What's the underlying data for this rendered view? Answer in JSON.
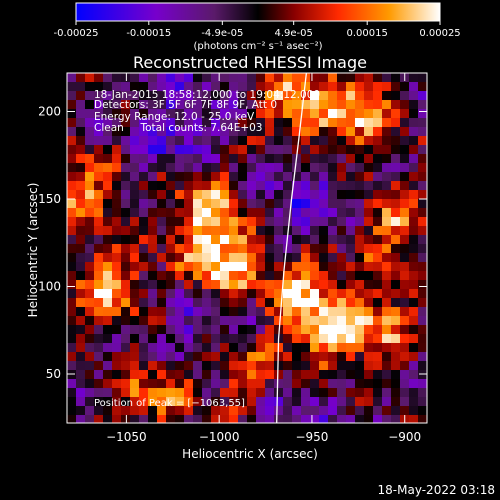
{
  "colorbar": {
    "ticks": [
      "-0.00025",
      "-0.00015",
      "-4.9e-05",
      "4.9e-05",
      "0.00015",
      "0.00025"
    ],
    "tick_values": [
      -0.00025,
      -0.00015,
      -4.9e-05,
      4.9e-05,
      0.00015,
      0.00025
    ],
    "range": [
      -0.00025,
      0.00025
    ],
    "unit_label": "(photons cm⁻² s⁻¹ asec⁻²)",
    "colors": [
      "#0000ff",
      "#7700cc",
      "#5a1a6a",
      "#000000",
      "#8a0000",
      "#ff2a00",
      "#ff9a00",
      "#ffffff"
    ]
  },
  "chart_data": {
    "type": "heatmap",
    "title": "Reconstructed RHESSI Image",
    "xlabel": "Heliocentric X (arcsec)",
    "ylabel": "Heliocentric Y (arcsec)",
    "xlim": [
      -1082,
      -888
    ],
    "ylim": [
      22,
      222
    ],
    "x_ticks": [
      -1050,
      -1000,
      -950,
      -900
    ],
    "x_tick_labels": [
      "−1050",
      "−1000",
      "−950",
      "−900"
    ],
    "y_ticks": [
      50,
      100,
      150,
      200
    ],
    "y_tick_labels": [
      "50",
      "100",
      "150",
      "200"
    ],
    "limb_curve": [
      [
        -969,
        22
      ],
      [
        -968,
        70
      ],
      [
        -965,
        110
      ],
      [
        -961,
        150
      ],
      [
        -957,
        185
      ],
      [
        -953,
        222
      ]
    ],
    "annotations": [
      "18-Jan-2015 18:58:12.000 to 19:04:12.000",
      "Detectors: 3F 5F 6F 7F 8F 9F, Att 0",
      "Energy Range: 12.0 - 25.0 keV",
      "Clean     Total counts: 7.64E+03"
    ],
    "peak_label": "Position of Peak = [−1063,55]",
    "bright_regions": [
      {
        "x": -1000,
        "y": 115,
        "level": 1.0
      },
      {
        "x": -1060,
        "y": 100,
        "level": 0.85
      },
      {
        "x": -1075,
        "y": 155,
        "level": 0.7
      },
      {
        "x": -1005,
        "y": 145,
        "level": 0.75
      },
      {
        "x": -955,
        "y": 100,
        "level": 0.8
      },
      {
        "x": -945,
        "y": 70,
        "level": 0.7
      },
      {
        "x": -925,
        "y": 200,
        "level": 0.8
      },
      {
        "x": -905,
        "y": 135,
        "level": 0.7
      },
      {
        "x": -915,
        "y": 80,
        "level": 0.7
      },
      {
        "x": -1035,
        "y": 40,
        "level": 0.6
      },
      {
        "x": -985,
        "y": 50,
        "level": 0.55
      },
      {
        "x": -960,
        "y": 205,
        "level": 0.75
      }
    ],
    "dark_regions": [
      {
        "x": -1020,
        "y": 190,
        "level": 0.6
      },
      {
        "x": -1010,
        "y": 80,
        "level": 0.5
      },
      {
        "x": -955,
        "y": 145,
        "level": 0.5
      },
      {
        "x": -960,
        "y": 40,
        "level": 0.4
      }
    ]
  },
  "footer": {
    "timestamp": "18-May-2022 03:18"
  }
}
